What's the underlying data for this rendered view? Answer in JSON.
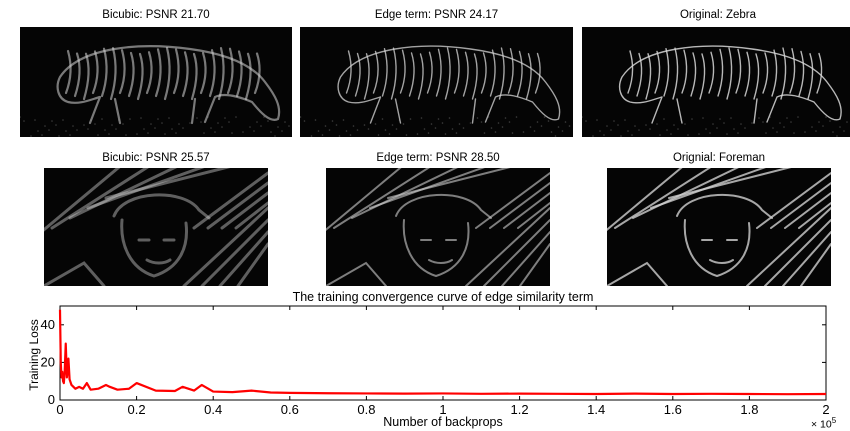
{
  "images": {
    "row1": [
      {
        "caption": "Bicubic: PSNR 21.70"
      },
      {
        "caption": "Edge term: PSNR 24.17"
      },
      {
        "caption": "Original: Zebra"
      }
    ],
    "row2": [
      {
        "caption": "Bicubic: PSNR 25.57"
      },
      {
        "caption": "Edge term: PSNR 28.50"
      },
      {
        "caption": "Orignial: Foreman"
      }
    ]
  },
  "chart_data": {
    "type": "line",
    "title": "The training convergence curve of edge similarity term",
    "xlabel": "Number of backprops",
    "ylabel": "Training Loss",
    "x_multiplier": "× 10^5",
    "x_multiplier_base": "× 10",
    "x_multiplier_exp": "5",
    "xlim": [
      0,
      2
    ],
    "ylim": [
      0,
      50
    ],
    "xticks": [
      "0",
      "0.2",
      "0.4",
      "0.6",
      "0.8",
      "1",
      "1.2",
      "1.4",
      "1.6",
      "1.8",
      "2"
    ],
    "yticks": [
      "0",
      "20",
      "40"
    ],
    "grid": false,
    "color": "#ff0000",
    "series": [
      {
        "x": [
          0,
          0.002,
          0.004,
          0.006,
          0.008,
          0.01,
          0.012,
          0.015,
          0.018,
          0.02,
          0.022,
          0.025,
          0.03,
          0.035,
          0.04,
          0.05,
          0.06,
          0.07,
          0.08,
          0.1,
          0.12,
          0.13,
          0.15,
          0.18,
          0.2,
          0.25,
          0.3,
          0.32,
          0.35,
          0.37,
          0.4,
          0.45,
          0.5,
          0.55,
          0.6,
          0.7,
          0.8,
          0.9,
          1.0,
          1.1,
          1.2,
          1.3,
          1.4,
          1.5,
          1.6,
          1.7,
          1.8,
          1.9,
          2.0
        ],
        "y": [
          48,
          20,
          12,
          15,
          10,
          9,
          14,
          30,
          12,
          16,
          22,
          11,
          8,
          7,
          6,
          7,
          6,
          9,
          5.5,
          6,
          8,
          7,
          5.5,
          6,
          9,
          5,
          4.8,
          7,
          5,
          8,
          4.5,
          4.2,
          5,
          4,
          3.8,
          3.6,
          3.5,
          3.4,
          3.5,
          3.3,
          3.4,
          3.3,
          3.2,
          3.4,
          3.2,
          3.3,
          3.2,
          3.1,
          3.2
        ]
      }
    ]
  }
}
